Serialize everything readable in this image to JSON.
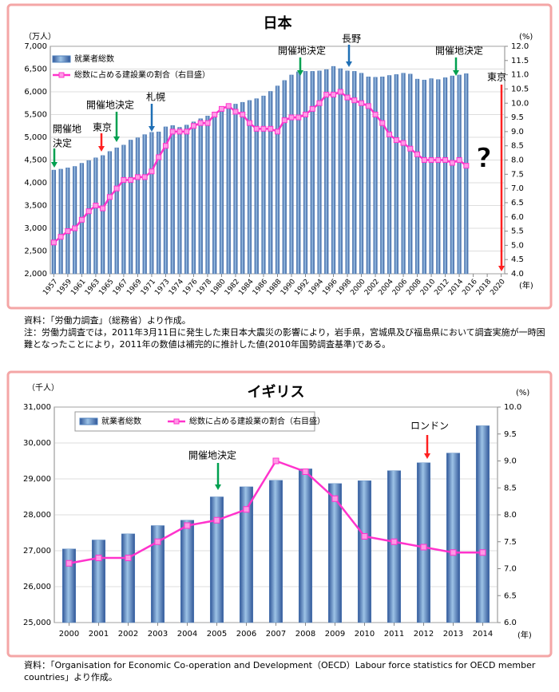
{
  "chart_data": [
    {
      "type": "bar",
      "title": "日本",
      "y_unit": "（万人）",
      "y2_unit": "(%)",
      "x_unit": "(年)",
      "categories": [
        "1957",
        null,
        "1959",
        null,
        "1961",
        null,
        "1963",
        null,
        "1965",
        null,
        "1967",
        null,
        "1969",
        null,
        "1971",
        null,
        "1973",
        null,
        "1974",
        null,
        "1976",
        null,
        "1978",
        null,
        "1980",
        null,
        "1982",
        null,
        "1984",
        null,
        "1986",
        null,
        "1988",
        null,
        "1990",
        null,
        "1992",
        null,
        "1994",
        null,
        "1996",
        null,
        "1998",
        null,
        "2000",
        null,
        "2002",
        null,
        "2004",
        null,
        "2006",
        null,
        "2008",
        null,
        "2010",
        null,
        "2012",
        null,
        "2014",
        null,
        "2016",
        null,
        "2018",
        null,
        "2020"
      ],
      "series": [
        {
          "name": "就業者総数",
          "color": "#4f81bd",
          "values": [
            4280,
            4300,
            4330,
            4360,
            4430,
            4490,
            4550,
            4600,
            4690,
            4770,
            4830,
            4940,
            4990,
            5060,
            5110,
            5120,
            5230,
            5260,
            5220,
            5270,
            5340,
            5410,
            5470,
            5520,
            5580,
            5640,
            5730,
            5770,
            5810,
            5850,
            5910,
            6010,
            6130,
            6250,
            6370,
            6440,
            6450,
            6450,
            6460,
            6490,
            6560,
            6510,
            6460,
            6450,
            6410,
            6330,
            6320,
            6330,
            6360,
            6380,
            6410,
            6390,
            6280,
            6260,
            6290,
            6270,
            6310,
            6350,
            6370,
            6400,
            null,
            null,
            null,
            null,
            null
          ]
        },
        {
          "name": "総数に占める建設業の割合（右目盛）",
          "color": "#ff33cc",
          "axis": "y2",
          "values": [
            5.1,
            5.3,
            5.5,
            5.6,
            5.9,
            6.2,
            6.4,
            6.3,
            6.7,
            7.0,
            7.3,
            7.3,
            7.4,
            7.4,
            7.6,
            8.1,
            8.5,
            9.0,
            9.0,
            9.0,
            9.2,
            9.3,
            9.3,
            9.6,
            9.8,
            9.9,
            9.7,
            9.6,
            9.3,
            9.1,
            9.1,
            9.1,
            9.0,
            9.4,
            9.5,
            9.5,
            9.6,
            9.8,
            10.0,
            10.3,
            10.3,
            10.4,
            10.2,
            10.1,
            10.0,
            9.9,
            9.6,
            9.3,
            8.9,
            8.7,
            8.6,
            8.4,
            8.2,
            8.0,
            8.0,
            8.0,
            8.0,
            7.9,
            8.0,
            7.8,
            null,
            null,
            null,
            null,
            null
          ]
        }
      ],
      "ylim": [
        2000,
        7000
      ],
      "yticks": [
        {
          "value": 2000,
          "label": "2,000"
        },
        {
          "value": 2500,
          "label": "2,500"
        },
        {
          "value": 3000,
          "label": "3,000"
        },
        {
          "value": 3500,
          "label": "3,500"
        },
        {
          "value": 4000,
          "label": "4,000"
        },
        {
          "value": 4500,
          "label": "4,500"
        },
        {
          "value": 5000,
          "label": "5,000"
        },
        {
          "value": 5500,
          "label": "5,500"
        },
        {
          "value": 6000,
          "label": "6,000"
        },
        {
          "value": 6500,
          "label": "6,500"
        },
        {
          "value": 7000,
          "label": "7,000"
        }
      ],
      "y2lim": [
        4.0,
        12.0
      ],
      "y2ticks": [
        {
          "value": 4,
          "label": "4.0"
        },
        4.5,
        {
          "value": 5,
          "label": "5.0"
        },
        5.5,
        {
          "value": 6,
          "label": "6.0"
        },
        6.5,
        {
          "value": 7,
          "label": "7.0"
        },
        7.5,
        {
          "value": 8,
          "label": "8.0"
        },
        8.5,
        {
          "value": 9,
          "label": "9.0"
        },
        9.5,
        {
          "value": 10,
          "label": "10.0"
        },
        10.5,
        {
          "value": 11,
          "label": "11.0"
        },
        11.5,
        {
          "value": 12,
          "label": "12.0"
        }
      ],
      "annotations": [
        {
          "text": "開催地",
          "color": "#00a050"
        },
        {
          "text": "決定",
          "color": "#00a050"
        },
        {
          "text": "東京",
          "color": "#ff2020"
        },
        {
          "text": "開催地決定",
          "color": "#00a050"
        },
        {
          "text": "札幌",
          "color": "#1f6fb5"
        },
        {
          "text": "開催地決定",
          "color": "#00a050"
        },
        {
          "text": "長野",
          "color": "#1f6fb5"
        },
        {
          "text": "開催地決定",
          "color": "#00a050"
        },
        {
          "text": "東京",
          "color": "#ff2020"
        },
        {
          "text": "?",
          "color": "#ff2020"
        }
      ],
      "notes": [
        "資料：「労働力調査」（総務省）より作成。",
        "注：労働力調査では，2011年3月11日に発生した東日本大震災の影響により，岩手県，宮城県及び福島県において調査実施が一時困難となったことにより，2011年の数値は補完的に推計した値(2010年国勢調査基準)である。"
      ]
    },
    {
      "type": "bar",
      "title": "イギリス",
      "y_unit": "（千人）",
      "y2_unit": "(%)",
      "x_unit": "(年)",
      "categories": [
        "2000",
        "2001",
        "2002",
        "2003",
        "2004",
        "2005",
        "2006",
        "2007",
        "2008",
        "2009",
        "2010",
        "2011",
        "2012",
        "2013",
        "2014"
      ],
      "series": [
        {
          "name": "就業者総数",
          "color": "#4f81bd",
          "values": [
            27050,
            27300,
            27470,
            27700,
            27850,
            28500,
            28780,
            28960,
            29280,
            28870,
            28950,
            29230,
            29450,
            29720,
            30480
          ]
        },
        {
          "name": "総数に占める建設業の割合（右目盛）",
          "color": "#ff33cc",
          "axis": "y2",
          "values": [
            7.1,
            7.2,
            7.2,
            7.5,
            7.8,
            7.9,
            8.1,
            9.0,
            8.8,
            8.3,
            7.6,
            7.5,
            7.4,
            7.3,
            7.3
          ]
        }
      ],
      "ylim": [
        25000,
        31000
      ],
      "yticks": [
        {
          "value": 25000,
          "label": "25,000"
        },
        {
          "value": 26000,
          "label": "26,000"
        },
        {
          "value": 27000,
          "label": "27,000"
        },
        {
          "value": 28000,
          "label": "28,000"
        },
        {
          "value": 29000,
          "label": "29,000"
        },
        {
          "value": 30000,
          "label": "30,000"
        },
        {
          "value": 31000,
          "label": "31,000"
        }
      ],
      "y2lim": [
        6.0,
        10.0
      ],
      "y2ticks": [
        {
          "value": 6,
          "label": "6.0"
        },
        6.5,
        {
          "value": 7,
          "label": "7.0"
        },
        7.5,
        {
          "value": 8,
          "label": "8.0"
        },
        8.5,
        {
          "value": 9,
          "label": "9.0"
        },
        9.5,
        {
          "value": 10,
          "label": "10.0"
        }
      ],
      "annotations": [
        {
          "text": "開催地決定",
          "color": "#00a050"
        },
        {
          "text": "ロンドン",
          "color": "#ff2020"
        }
      ],
      "notes": [
        "資料：「Organisation for Economic Co-operation and Development（OECD）Labour force statistics for OECD member countries」より作成。"
      ]
    }
  ]
}
